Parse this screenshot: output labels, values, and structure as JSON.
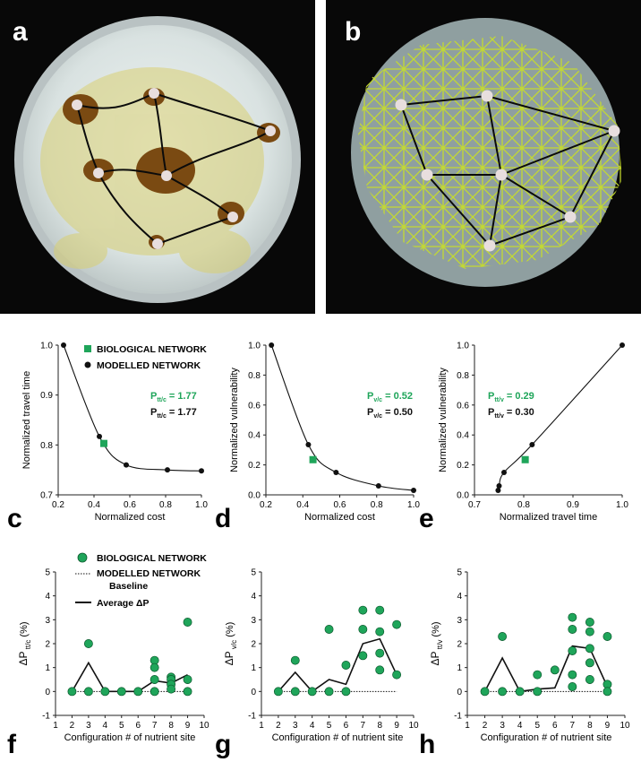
{
  "colors": {
    "green": "#1fa55a",
    "pale_green": "#3db36a",
    "dark": "#111111",
    "mesh": "#c6dc2c",
    "disc": "#8f9fa0"
  },
  "panels": {
    "a": "a",
    "b": "b",
    "c": "c",
    "d": "d",
    "e": "e",
    "f": "f",
    "g": "g",
    "h": "h"
  },
  "legend_top": {
    "bio": "BIOLOGICAL NETWORK",
    "model": "MODELLED NETWORK"
  },
  "legend_bottom": {
    "bio": "BIOLOGICAL NETWORK",
    "model": "MODELLED NETWORK",
    "baseline": "Baseline",
    "avg": "Average ΔP"
  },
  "chart_data": [
    {
      "id": "c",
      "type": "line",
      "xlabel": "Normalized cost",
      "ylabel": "Normalized travel time",
      "xlim": [
        0.2,
        1.0
      ],
      "ylim": [
        0.7,
        1.0
      ],
      "xticks": [
        "0.2",
        "0.4",
        "0.6",
        "0.8",
        "1.0"
      ],
      "yticks": [
        "0.7",
        "0.8",
        "0.9",
        "1.0"
      ],
      "modelled": [
        [
          0.23,
          1.0
        ],
        [
          0.43,
          0.817
        ],
        [
          0.58,
          0.76
        ],
        [
          0.81,
          0.75
        ],
        [
          1.0,
          0.748
        ]
      ],
      "biological": [
        [
          0.455,
          0.803
        ]
      ],
      "p_bio": {
        "main": "P",
        "sub": "tt/c",
        "val": "= 1.77"
      },
      "p_model": {
        "main": "P",
        "sub": "tt/c",
        "val": "= 1.77"
      }
    },
    {
      "id": "d",
      "type": "line",
      "xlabel": "Normalized cost",
      "ylabel": "Normalized vulnerability",
      "xlim": [
        0.2,
        1.0
      ],
      "ylim": [
        0.0,
        1.0
      ],
      "xticks": [
        "0.2",
        "0.4",
        "0.6",
        "0.8",
        "1.0"
      ],
      "yticks": [
        "0.0",
        "0.2",
        "0.4",
        "0.6",
        "0.8",
        "1.0"
      ],
      "modelled": [
        [
          0.23,
          1.0
        ],
        [
          0.43,
          0.335
        ],
        [
          0.58,
          0.15
        ],
        [
          0.81,
          0.06
        ],
        [
          1.0,
          0.03
        ]
      ],
      "biological": [
        [
          0.455,
          0.235
        ]
      ],
      "p_bio": {
        "main": "P",
        "sub": "v/c",
        "val": "= 0.52"
      },
      "p_model": {
        "main": "P",
        "sub": "v/c",
        "val": "= 0.50"
      }
    },
    {
      "id": "e",
      "type": "line",
      "xlabel": "Normalized travel time",
      "ylabel": "Normalized vulnerability",
      "xlim": [
        0.7,
        1.0
      ],
      "ylim": [
        0.0,
        1.0
      ],
      "xticks": [
        "0.7",
        "0.8",
        "0.9",
        "1.0"
      ],
      "yticks": [
        "0.0",
        "0.2",
        "0.4",
        "0.6",
        "0.8",
        "1.0"
      ],
      "modelled": [
        [
          0.748,
          0.03
        ],
        [
          0.75,
          0.06
        ],
        [
          0.76,
          0.15
        ],
        [
          0.817,
          0.335
        ],
        [
          1.0,
          1.0
        ]
      ],
      "biological": [
        [
          0.803,
          0.235
        ]
      ],
      "p_bio": {
        "main": "P",
        "sub": "tt/v",
        "val": "= 0.29"
      },
      "p_model": {
        "main": "P",
        "sub": "tt/v",
        "val": "= 0.30"
      }
    },
    {
      "id": "f",
      "type": "scatter",
      "xlabel": "Configuration # of nutrient site",
      "ylabel": {
        "main": "ΔP",
        "sub": "tt/c",
        "unit": "(%)"
      },
      "xlim": [
        1,
        10
      ],
      "ylim": [
        -1,
        5
      ],
      "xticks": [
        "1",
        "2",
        "3",
        "4",
        "5",
        "6",
        "7",
        "8",
        "9",
        "10"
      ],
      "yticks": [
        "-1",
        "0",
        "1",
        "2",
        "3",
        "4",
        "5"
      ],
      "points": [
        [
          2,
          0
        ],
        [
          3,
          2.0
        ],
        [
          3,
          0
        ],
        [
          4,
          0
        ],
        [
          5,
          0
        ],
        [
          6,
          0
        ],
        [
          7,
          1.3
        ],
        [
          7,
          1.0
        ],
        [
          7,
          0.5
        ],
        [
          7,
          0
        ],
        [
          8,
          0.6
        ],
        [
          8,
          0.5
        ],
        [
          8,
          0.3
        ],
        [
          8,
          0.1
        ],
        [
          9,
          2.9
        ],
        [
          9,
          0.5
        ],
        [
          9,
          0
        ]
      ],
      "average": [
        [
          2,
          0
        ],
        [
          3,
          1.2
        ],
        [
          4,
          0
        ],
        [
          5,
          0
        ],
        [
          6,
          0
        ],
        [
          7,
          0.45
        ],
        [
          8,
          0.35
        ],
        [
          9,
          0.7
        ]
      ]
    },
    {
      "id": "g",
      "type": "scatter",
      "xlabel": "Configuration # of nutrient site",
      "ylabel": {
        "main": "ΔP",
        "sub": "v/c",
        "unit": "(%)"
      },
      "xlim": [
        1,
        10
      ],
      "ylim": [
        -1,
        5
      ],
      "xticks": [
        "1",
        "2",
        "3",
        "4",
        "5",
        "6",
        "7",
        "8",
        "9",
        "10"
      ],
      "yticks": [
        "-1",
        "0",
        "1",
        "2",
        "3",
        "4",
        "5"
      ],
      "points": [
        [
          2,
          0
        ],
        [
          3,
          1.3
        ],
        [
          3,
          0
        ],
        [
          4,
          0
        ],
        [
          5,
          2.6
        ],
        [
          5,
          0
        ],
        [
          6,
          1.1
        ],
        [
          6,
          0
        ],
        [
          7,
          3.4
        ],
        [
          7,
          2.6
        ],
        [
          7,
          1.5
        ],
        [
          8,
          3.4
        ],
        [
          8,
          2.5
        ],
        [
          8,
          1.6
        ],
        [
          8,
          0.9
        ],
        [
          9,
          2.8
        ],
        [
          9,
          0.7
        ]
      ],
      "average": [
        [
          2,
          0
        ],
        [
          3,
          0.8
        ],
        [
          4,
          0
        ],
        [
          5,
          0.5
        ],
        [
          6,
          0.3
        ],
        [
          7,
          2.0
        ],
        [
          8,
          2.2
        ],
        [
          9,
          0.7
        ]
      ]
    },
    {
      "id": "h",
      "type": "scatter",
      "xlabel": "Configuration # of nutrient site",
      "ylabel": {
        "main": "ΔP",
        "sub": "tt/v",
        "unit": "(%)"
      },
      "xlim": [
        1,
        10
      ],
      "ylim": [
        -1,
        5
      ],
      "xticks": [
        "1",
        "2",
        "3",
        "4",
        "5",
        "6",
        "7",
        "8",
        "9",
        "10"
      ],
      "yticks": [
        "-1",
        "0",
        "1",
        "2",
        "3",
        "4",
        "5"
      ],
      "points": [
        [
          2,
          0
        ],
        [
          3,
          2.3
        ],
        [
          3,
          0
        ],
        [
          4,
          0
        ],
        [
          5,
          0.7
        ],
        [
          5,
          0
        ],
        [
          6,
          0.9
        ],
        [
          7,
          3.1
        ],
        [
          7,
          2.6
        ],
        [
          7,
          1.7
        ],
        [
          7,
          0.7
        ],
        [
          7,
          0.2
        ],
        [
          8,
          2.9
        ],
        [
          8,
          2.5
        ],
        [
          8,
          1.8
        ],
        [
          8,
          1.2
        ],
        [
          8,
          0.5
        ],
        [
          9,
          2.3
        ],
        [
          9,
          0.3
        ],
        [
          9,
          0
        ]
      ],
      "average": [
        [
          2,
          0
        ],
        [
          3,
          1.4
        ],
        [
          4,
          0
        ],
        [
          5,
          0.1
        ],
        [
          6,
          0.15
        ],
        [
          7,
          1.9
        ],
        [
          8,
          1.8
        ],
        [
          9,
          0.2
        ]
      ]
    }
  ]
}
